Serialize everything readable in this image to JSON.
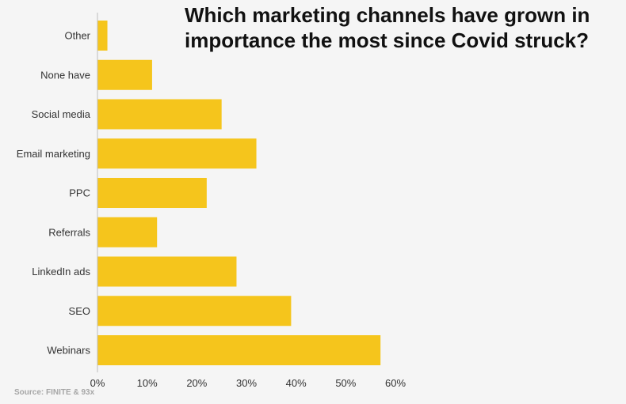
{
  "chart_data": {
    "type": "bar",
    "orientation": "horizontal",
    "title_lines": [
      "Which marketing channels have grown in",
      "importance the most since Covid struck?"
    ],
    "categories": [
      "Other",
      "None have",
      "Social media",
      "Email marketing",
      "PPC",
      "Referrals",
      "LinkedIn ads",
      "SEO",
      "Webinars"
    ],
    "values": [
      2,
      11,
      25,
      32,
      22,
      12,
      28,
      39,
      57
    ],
    "xlim": [
      0,
      60
    ],
    "x_ticks": [
      0,
      10,
      20,
      30,
      40,
      50,
      60
    ],
    "tick_suffix": "%",
    "bar_color": "#f5c51c",
    "grid": false,
    "legend": "none"
  },
  "source": "Source: FINITE & 93x"
}
